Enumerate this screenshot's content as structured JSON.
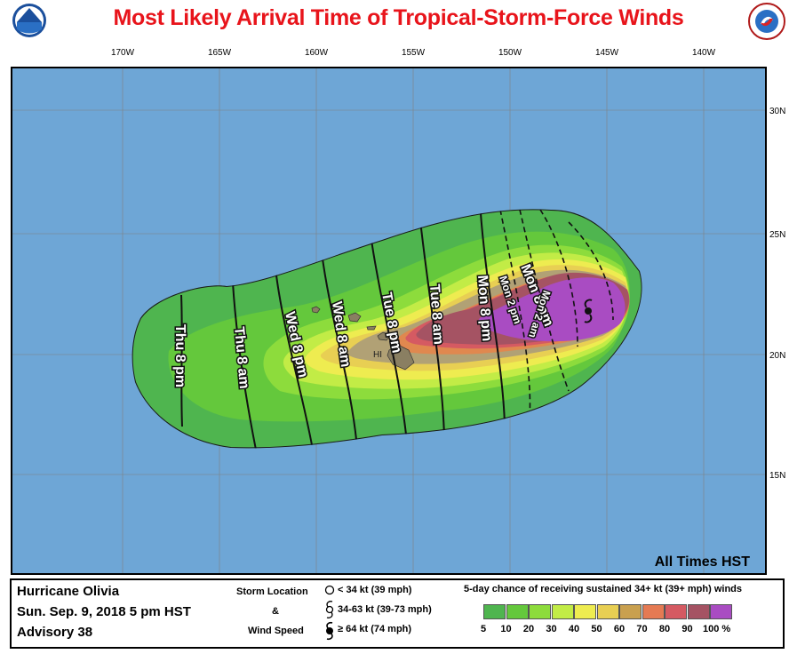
{
  "title": "Most Likely Arrival Time of Tropical-Storm-Force Winds",
  "axes": {
    "lon_labels": [
      "170W",
      "165W",
      "160W",
      "155W",
      "150W",
      "145W",
      "140W"
    ],
    "lat_labels": [
      "30N",
      "25N",
      "20N",
      "15N"
    ]
  },
  "map_labels": {
    "region": "HI",
    "times_note": "All Times HST"
  },
  "arrival_times": [
    "Thu 8 pm",
    "Thu 8 am",
    "Wed 8 pm",
    "Wed 8 am",
    "Tue 8 pm",
    "Tue 8 am",
    "Mon 8 pm",
    "Mon 2 pm",
    "Mon 8 am",
    "Mon 2 am"
  ],
  "legend": {
    "storm_name": "Hurricane Olivia",
    "datetime": "Sun. Sep. 9, 2018  5 pm HST",
    "advisory": "Advisory 38",
    "storm_location_label": "Storm Location",
    "ampersand": "&",
    "wind_speed_label": "Wind Speed",
    "wind_keys": [
      "< 34 kt (39 mph)",
      "34-63 kt (39-73 mph)",
      "≥ 64 kt (74 mph)"
    ],
    "prob_title": "5-day chance of receiving sustained 34+ kt (39+ mph) winds",
    "prob_ticks": [
      "5",
      "10",
      "20",
      "30",
      "40",
      "50",
      "60",
      "70",
      "80",
      "90",
      "100 %"
    ],
    "prob_colors": [
      "#4fb54f",
      "#64c83c",
      "#8ddc3c",
      "#c2ec46",
      "#eeec50",
      "#e8cf53",
      "#c9a04f",
      "#e57a53",
      "#d55a62",
      "#a55363",
      "#a94cc2"
    ]
  },
  "colors": {
    "ocean": "#6ea6d6",
    "band_5": "#4fb54f",
    "band_10": "#64c83c",
    "band_20": "#8ddc3c",
    "band_30": "#c2ec46",
    "band_40": "#eeec50",
    "band_50": "#e8cf53",
    "band_60": "#b1a175",
    "band_70": "#e0884f",
    "band_80": "#d55a62",
    "band_90": "#a55363",
    "band_100": "#a94cc2"
  }
}
